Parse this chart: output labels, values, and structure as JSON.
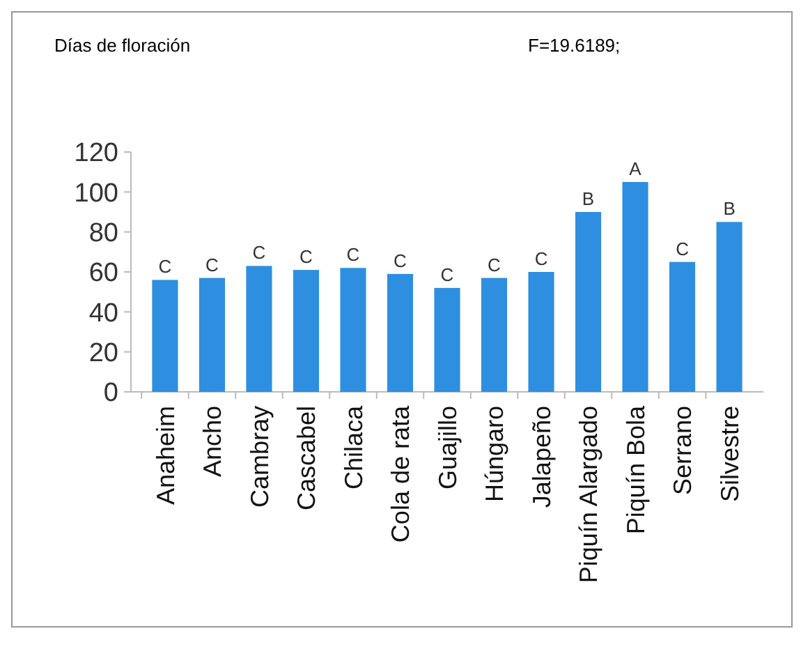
{
  "chart_data": {
    "type": "bar",
    "title": "Días de floración",
    "categories": [
      "Anaheim",
      "Ancho",
      "Cambray",
      "Cascabel",
      "Chilaca",
      "Cola de rata",
      "Guajillo",
      "Húngaro",
      "Jalapeño",
      "Piquín Alargado",
      "Piquín Bola",
      "Serrano",
      "Silvestre"
    ],
    "values": [
      56,
      57,
      63,
      61,
      62,
      59,
      52,
      57,
      60,
      90,
      105,
      65,
      85
    ],
    "color": "#2e8fe0",
    "ylim": [
      0,
      120
    ],
    "yticks": [
      0,
      20,
      40,
      60,
      80,
      100,
      120
    ],
    "grid": false,
    "value_labels": [
      "C",
      "C",
      "C",
      "C",
      "C",
      "C",
      "C",
      "C",
      "C",
      "B",
      "A",
      "C",
      "B"
    ],
    "annotations": [
      "F=19.6189;"
    ]
  }
}
